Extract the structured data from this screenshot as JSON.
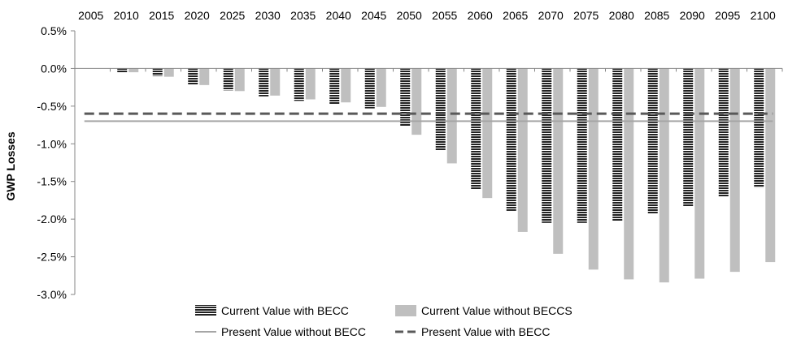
{
  "chart_data": {
    "type": "bar",
    "title": "",
    "xlabel": "",
    "ylabel": "GWP Losses",
    "categories": [
      "2005",
      "2010",
      "2015",
      "2020",
      "2025",
      "2030",
      "2035",
      "2040",
      "2045",
      "2050",
      "2055",
      "2060",
      "2065",
      "2070",
      "2075",
      "2080",
      "2085",
      "2090",
      "2095",
      "2100"
    ],
    "x_axis_position": "top",
    "ylim": [
      -3.0,
      0.5
    ],
    "y_ticks": [
      "0.5%",
      "0.0%",
      "-0.5%",
      "-1.0%",
      "-1.5%",
      "-2.0%",
      "-2.5%",
      "-3.0%"
    ],
    "y_tick_values": [
      0.5,
      0.0,
      -0.5,
      -1.0,
      -1.5,
      -2.0,
      -2.5,
      -3.0
    ],
    "y_unit": "%",
    "grid": false,
    "series": [
      {
        "name": "Current Value with BECC",
        "kind": "bar",
        "pattern": "horizontal-stripes",
        "color": "#222222",
        "values": [
          0.0,
          -0.05,
          -0.1,
          -0.22,
          -0.29,
          -0.37,
          -0.43,
          -0.47,
          -0.53,
          -0.77,
          -1.09,
          -1.6,
          -1.89,
          -2.05,
          -2.05,
          -2.02,
          -1.93,
          -1.83,
          -1.7,
          -1.58
        ]
      },
      {
        "name": "Current Value without BECCS",
        "kind": "bar",
        "pattern": "solid",
        "color": "#bfbfbf",
        "values": [
          0.0,
          -0.05,
          -0.11,
          -0.22,
          -0.3,
          -0.36,
          -0.41,
          -0.45,
          -0.51,
          -0.88,
          -1.26,
          -1.72,
          -2.17,
          -2.46,
          -2.67,
          -2.8,
          -2.84,
          -2.79,
          -2.7,
          -2.57
        ]
      },
      {
        "name": "Present Value without BECC",
        "kind": "line",
        "style": "solid",
        "color": "#a6a6a6",
        "value": -0.7
      },
      {
        "name": "Present Value  with BECC",
        "kind": "line",
        "style": "dashed",
        "color": "#595959",
        "value": -0.6
      }
    ],
    "legend": {
      "placement": "bottom",
      "rows": [
        [
          "Current Value with BECC",
          "Current Value without BECCS"
        ],
        [
          "Present Value without BECC",
          "Present Value  with BECC"
        ]
      ]
    }
  }
}
